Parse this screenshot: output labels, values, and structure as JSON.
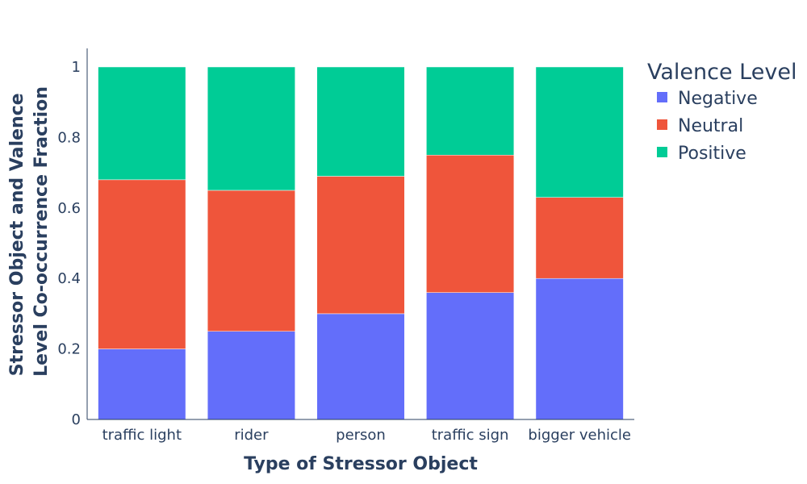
{
  "chart_data": {
    "type": "bar",
    "stacked": true,
    "categories": [
      "traffic light",
      "rider",
      "person",
      "traffic sign",
      "bigger vehicle"
    ],
    "series": [
      {
        "name": "Negative",
        "color": "#636efa",
        "values": [
          0.2,
          0.25,
          0.3,
          0.36,
          0.4
        ]
      },
      {
        "name": "Neutral",
        "color": "#ef553b",
        "values": [
          0.48,
          0.4,
          0.39,
          0.39,
          0.23
        ]
      },
      {
        "name": "Positive",
        "color": "#00cc96",
        "values": [
          0.32,
          0.35,
          0.31,
          0.25,
          0.37
        ]
      }
    ],
    "xlabel": "Type of Stressor Object",
    "ylabel_lines": [
      "Stressor Object and Valence",
      "Level Co-occurrence Fraction"
    ],
    "yticks": [
      "0",
      "0.2",
      "0.4",
      "0.6",
      "0.8",
      "1"
    ],
    "ylim": [
      0,
      1
    ],
    "legend_title": "Valence Level",
    "legend_position": "top-right",
    "grid": false
  }
}
